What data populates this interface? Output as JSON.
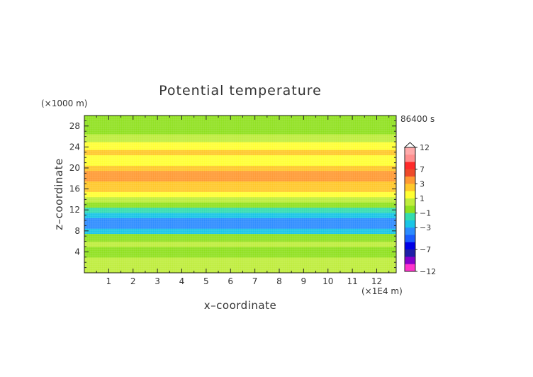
{
  "chart_data": {
    "type": "heatmap",
    "title": "Potential temperature",
    "xlabel": "x–coordinate",
    "ylabel": "z–coordinate",
    "x_unit": "(×1E4 m)",
    "y_unit": "(×1000 m)",
    "time_label": "86400 s",
    "xlim": [
      0,
      12.8
    ],
    "ylim": [
      0,
      30
    ],
    "x_ticks": [
      1,
      2,
      3,
      4,
      5,
      6,
      7,
      8,
      9,
      10,
      11,
      12
    ],
    "y_ticks": [
      4,
      8,
      12,
      16,
      20,
      24,
      28
    ],
    "colorbar": {
      "levels": [
        -12,
        -9,
        -7,
        -5,
        -4,
        -3,
        -2,
        -1,
        0,
        1,
        2,
        3,
        5,
        7,
        9,
        12
      ],
      "labels": [
        "12",
        "7",
        "3",
        "1",
        "−1",
        "−3",
        "−7",
        "−12"
      ],
      "label_values": [
        12,
        7,
        3,
        1,
        -1,
        -3,
        -7,
        -12
      ],
      "colors": [
        "#ff33cc",
        "#8800cc",
        "#1f1fa8",
        "#0000e6",
        "#1a5cff",
        "#2b8bff",
        "#19c5e6",
        "#33dcaf",
        "#8fe11f",
        "#bfed3c",
        "#ffff33",
        "#ffc82a",
        "#ff9933",
        "#ee4a2a",
        "#ff2a2a",
        "#ff8f8f",
        "#ffaaaa"
      ]
    },
    "bands": [
      {
        "z": 0.0,
        "value": 0.4
      },
      {
        "z": 1.5,
        "value": 0.4
      },
      {
        "z": 3.0,
        "value": -0.6
      },
      {
        "z": 4.0,
        "value": -0.3
      },
      {
        "z": 5.0,
        "value": 0.3
      },
      {
        "z": 6.0,
        "value": -0.5
      },
      {
        "z": 7.5,
        "value": -2.2
      },
      {
        "z": 8.5,
        "value": -3.0
      },
      {
        "z": 9.5,
        "value": -3.6
      },
      {
        "z": 10.5,
        "value": -2.8
      },
      {
        "z": 11.5,
        "value": -1.8
      },
      {
        "z": 12.5,
        "value": -0.6
      },
      {
        "z": 13.5,
        "value": 0.3
      },
      {
        "z": 14.5,
        "value": 1.2
      },
      {
        "z": 15.5,
        "value": 2.3
      },
      {
        "z": 16.5,
        "value": 2.5
      },
      {
        "z": 17.5,
        "value": 3.4
      },
      {
        "z": 18.5,
        "value": 3.6
      },
      {
        "z": 19.5,
        "value": 2.8
      },
      {
        "z": 20.5,
        "value": 1.8
      },
      {
        "z": 21.5,
        "value": 1.7
      },
      {
        "z": 22.5,
        "value": 2.4
      },
      {
        "z": 23.5,
        "value": 1.3
      },
      {
        "z": 25.0,
        "value": 0.4
      },
      {
        "z": 26.5,
        "value": -0.3
      },
      {
        "z": 28.0,
        "value": -0.3
      },
      {
        "z": 30.0,
        "value": 0.2
      }
    ]
  }
}
